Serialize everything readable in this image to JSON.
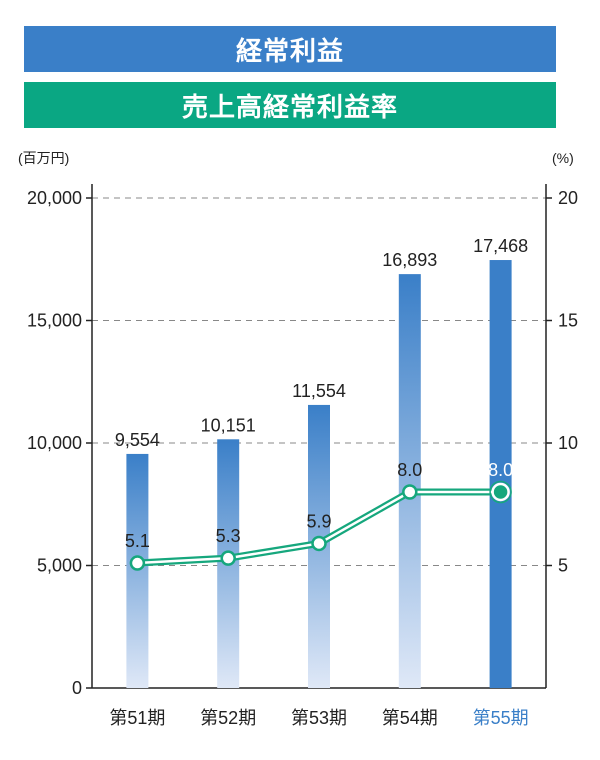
{
  "legend": {
    "profit_label": "経常利益",
    "ratio_label": "売上高経常利益率"
  },
  "colors": {
    "bar_blue": "#3a7fc8",
    "bar_light": "#dfe8f7",
    "highlight_bar": "#3a7fc8",
    "line_green": "#16a77d",
    "banner_green": "#0aa783",
    "highlight_text": "#3a7fc8",
    "axis": "#222222",
    "grid": "#888888"
  },
  "chart_data": {
    "type": "bar+line",
    "categories": [
      "第51期",
      "第52期",
      "第53期",
      "第54期",
      "第55期"
    ],
    "highlight_index": 4,
    "series": [
      {
        "name": "経常利益",
        "type": "bar",
        "axis": "left",
        "values": [
          9554,
          10151,
          11554,
          16893,
          17468
        ],
        "labels": [
          "9,554",
          "10,151",
          "11,554",
          "16,893",
          "17,468"
        ]
      },
      {
        "name": "売上高経常利益率",
        "type": "line",
        "axis": "right",
        "values": [
          5.1,
          5.3,
          5.9,
          8.0,
          8.0
        ],
        "labels": [
          "5.1",
          "5.3",
          "5.9",
          "8.0",
          "8.0"
        ]
      }
    ],
    "left_axis": {
      "unit": "(百万円)",
      "ylim": [
        0,
        20000
      ],
      "ticks": [
        0,
        5000,
        10000,
        15000,
        20000
      ],
      "tick_labels": [
        "0",
        "5,000",
        "10,000",
        "15,000",
        "20,000"
      ]
    },
    "right_axis": {
      "unit": "(%)",
      "ylim": [
        0,
        20
      ],
      "ticks": [
        5,
        10,
        15,
        20
      ],
      "tick_labels": [
        "5",
        "10",
        "15",
        "20"
      ]
    },
    "grid": "dashed-horizontal"
  }
}
